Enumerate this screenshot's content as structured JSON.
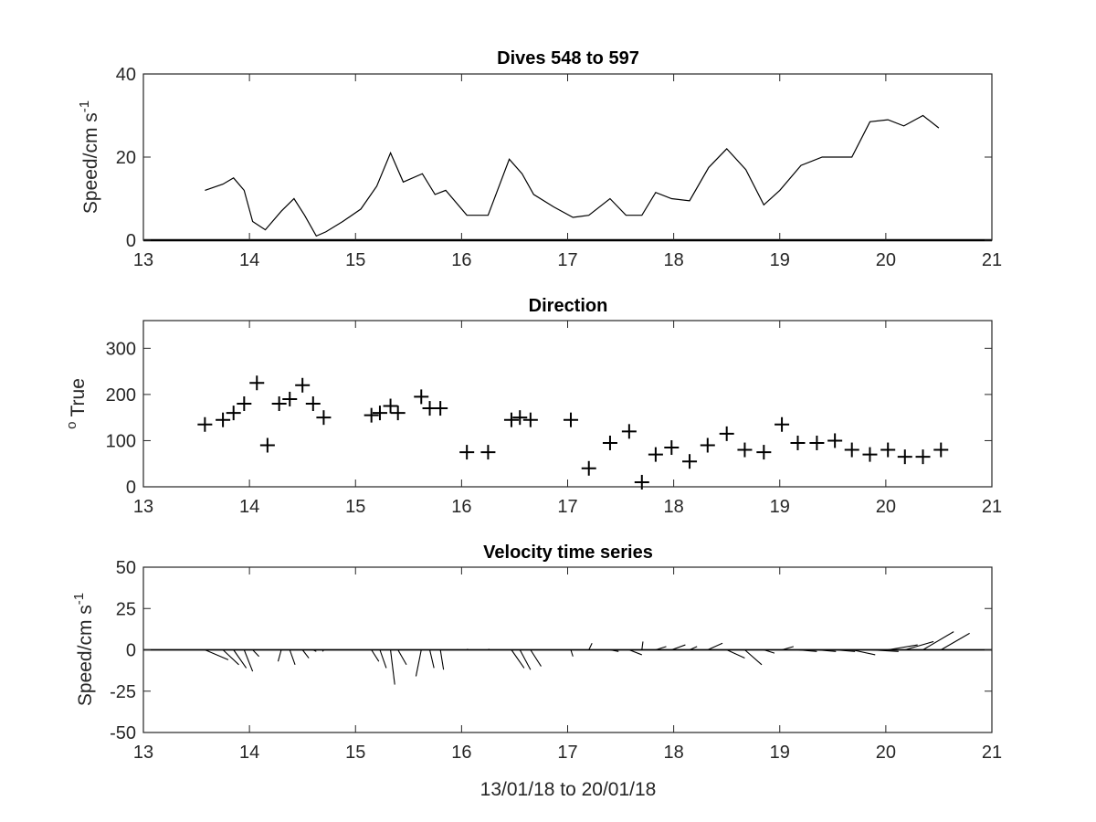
{
  "chart_data": [
    {
      "type": "line",
      "title": "Dives 548 to 597",
      "ylabel": "Speed/cm s",
      "ylabel_superscript": "-1",
      "xlabel": "",
      "xlim": [
        13,
        21
      ],
      "ylim": [
        0,
        40
      ],
      "xticks": [
        "13",
        "14",
        "15",
        "16",
        "17",
        "18",
        "19",
        "20",
        "21"
      ],
      "yticks": [
        "0",
        "20",
        "40"
      ],
      "grid": false,
      "series": [
        {
          "x": [
            13.58,
            13.75,
            13.85,
            13.95,
            14.03,
            14.15,
            14.3,
            14.42,
            14.52,
            14.63,
            14.72,
            14.88,
            15.05,
            15.2,
            15.33,
            15.45,
            15.63,
            15.75,
            15.85,
            16.05,
            16.25,
            16.45,
            16.57,
            16.68,
            16.87,
            17.05,
            17.2,
            17.4,
            17.55,
            17.7,
            17.83,
            17.98,
            18.15,
            18.33,
            18.5,
            18.68,
            18.85,
            19.0,
            19.2,
            19.4,
            19.55,
            19.68,
            19.85,
            20.02,
            20.17,
            20.35,
            20.5
          ],
          "y": [
            12,
            13.5,
            15,
            12,
            4.5,
            2.5,
            7,
            10,
            6,
            1,
            2,
            4.5,
            7.5,
            13,
            21,
            14,
            16,
            11,
            12,
            6,
            6,
            19.5,
            16,
            11,
            8,
            5.5,
            6,
            10,
            6,
            6,
            11.5,
            10,
            9.5,
            17.5,
            22,
            17,
            8.5,
            12,
            18,
            20,
            20,
            20,
            28.5,
            29,
            27.5,
            30,
            27
          ]
        }
      ]
    },
    {
      "type": "scatter",
      "title": "Direction",
      "ylabel": "True",
      "ylabel_prefix": "o",
      "xlabel": "",
      "xlim": [
        13,
        21
      ],
      "ylim": [
        0,
        360
      ],
      "xticks": [
        "13",
        "14",
        "15",
        "16",
        "17",
        "18",
        "19",
        "20",
        "21"
      ],
      "yticks": [
        "0",
        "100",
        "200",
        "300"
      ],
      "grid": false,
      "marker": "+",
      "series": [
        {
          "x": [
            13.58,
            13.75,
            13.85,
            13.95,
            14.07,
            14.17,
            14.28,
            14.38,
            14.5,
            14.6,
            14.7,
            15.15,
            15.23,
            15.33,
            15.4,
            15.62,
            15.7,
            15.8,
            16.05,
            16.25,
            16.47,
            16.55,
            16.65,
            17.03,
            17.2,
            17.4,
            17.58,
            17.7,
            17.83,
            17.98,
            18.15,
            18.32,
            18.5,
            18.67,
            18.85,
            19.02,
            19.17,
            19.35,
            19.52,
            19.68,
            19.85,
            20.02,
            20.18,
            20.35,
            20.52
          ],
          "y": [
            135,
            145,
            160,
            180,
            225,
            90,
            180,
            190,
            220,
            180,
            150,
            155,
            160,
            175,
            160,
            195,
            170,
            170,
            75,
            75,
            145,
            150,
            145,
            145,
            40,
            95,
            120,
            10,
            70,
            85,
            55,
            90,
            115,
            80,
            75,
            135,
            95,
            95,
            100,
            80,
            70,
            80,
            65,
            65,
            80
          ]
        }
      ]
    },
    {
      "type": "line",
      "subtype": "stick-plot",
      "title": "Velocity time series",
      "ylabel": "Speed/cm s",
      "ylabel_superscript": "-1",
      "xlabel": "13/01/18 to 20/01/18",
      "xlim": [
        13,
        21
      ],
      "ylim": [
        -50,
        50
      ],
      "xticks": [
        "13",
        "14",
        "15",
        "16",
        "17",
        "18",
        "19",
        "20",
        "21"
      ],
      "yticks": [
        "-50",
        "-25",
        "0",
        "25",
        "50"
      ],
      "grid": false,
      "baseline": 0,
      "sticks": [
        {
          "x": 13.58,
          "u": 2.2,
          "v": -6
        },
        {
          "x": 13.75,
          "u": 1.5,
          "v": -9
        },
        {
          "x": 13.85,
          "u": 1.2,
          "v": -11
        },
        {
          "x": 13.95,
          "u": 0.8,
          "v": -13
        },
        {
          "x": 14.03,
          "u": 0.6,
          "v": -4
        },
        {
          "x": 14.3,
          "u": -0.3,
          "v": -7
        },
        {
          "x": 14.38,
          "u": 0.5,
          "v": -9
        },
        {
          "x": 14.5,
          "u": 0.6,
          "v": -5
        },
        {
          "x": 14.6,
          "u": 0.3,
          "v": -1
        },
        {
          "x": 14.7,
          "u": -0.1,
          "v": -1
        },
        {
          "x": 15.15,
          "u": 0.7,
          "v": -7
        },
        {
          "x": 15.23,
          "u": 0.6,
          "v": -11
        },
        {
          "x": 15.33,
          "u": 0.4,
          "v": -21
        },
        {
          "x": 15.4,
          "u": 0.8,
          "v": -9
        },
        {
          "x": 15.62,
          "u": -0.5,
          "v": -16
        },
        {
          "x": 15.7,
          "u": 0.4,
          "v": -11
        },
        {
          "x": 15.8,
          "u": 0.3,
          "v": -12
        },
        {
          "x": 16.05,
          "u": 0.1,
          "v": 0.5
        },
        {
          "x": 16.25,
          "u": 0.1,
          "v": 0.5
        },
        {
          "x": 16.47,
          "u": 1.2,
          "v": -11
        },
        {
          "x": 16.55,
          "u": 1.0,
          "v": -12
        },
        {
          "x": 16.65,
          "u": 1.0,
          "v": -10
        },
        {
          "x": 17.03,
          "u": 0.2,
          "v": -4
        },
        {
          "x": 17.2,
          "u": 0.3,
          "v": 4
        },
        {
          "x": 17.4,
          "u": 0.8,
          "v": -1
        },
        {
          "x": 17.58,
          "u": 1.2,
          "v": -3
        },
        {
          "x": 17.7,
          "u": 0.1,
          "v": 5
        },
        {
          "x": 17.83,
          "u": 1.0,
          "v": 2
        },
        {
          "x": 17.98,
          "u": 1.3,
          "v": 3
        },
        {
          "x": 18.15,
          "u": 0.7,
          "v": 2
        },
        {
          "x": 18.32,
          "u": 1.4,
          "v": 4
        },
        {
          "x": 18.5,
          "u": 1.7,
          "v": -5
        },
        {
          "x": 18.67,
          "u": 1.6,
          "v": -9
        },
        {
          "x": 18.85,
          "u": 1.0,
          "v": -2
        },
        {
          "x": 19.02,
          "u": 1.1,
          "v": 2
        },
        {
          "x": 19.17,
          "u": 1.8,
          "v": -1
        },
        {
          "x": 19.35,
          "u": 1.8,
          "v": -1
        },
        {
          "x": 19.52,
          "u": 1.9,
          "v": -1
        },
        {
          "x": 19.68,
          "u": 2.2,
          "v": -3
        },
        {
          "x": 19.85,
          "u": 2.7,
          "v": -1
        },
        {
          "x": 20.02,
          "u": 2.8,
          "v": 3
        },
        {
          "x": 20.18,
          "u": 2.7,
          "v": 5
        },
        {
          "x": 20.35,
          "u": 2.9,
          "v": 11
        },
        {
          "x": 20.52,
          "u": 2.7,
          "v": 10
        }
      ]
    }
  ]
}
